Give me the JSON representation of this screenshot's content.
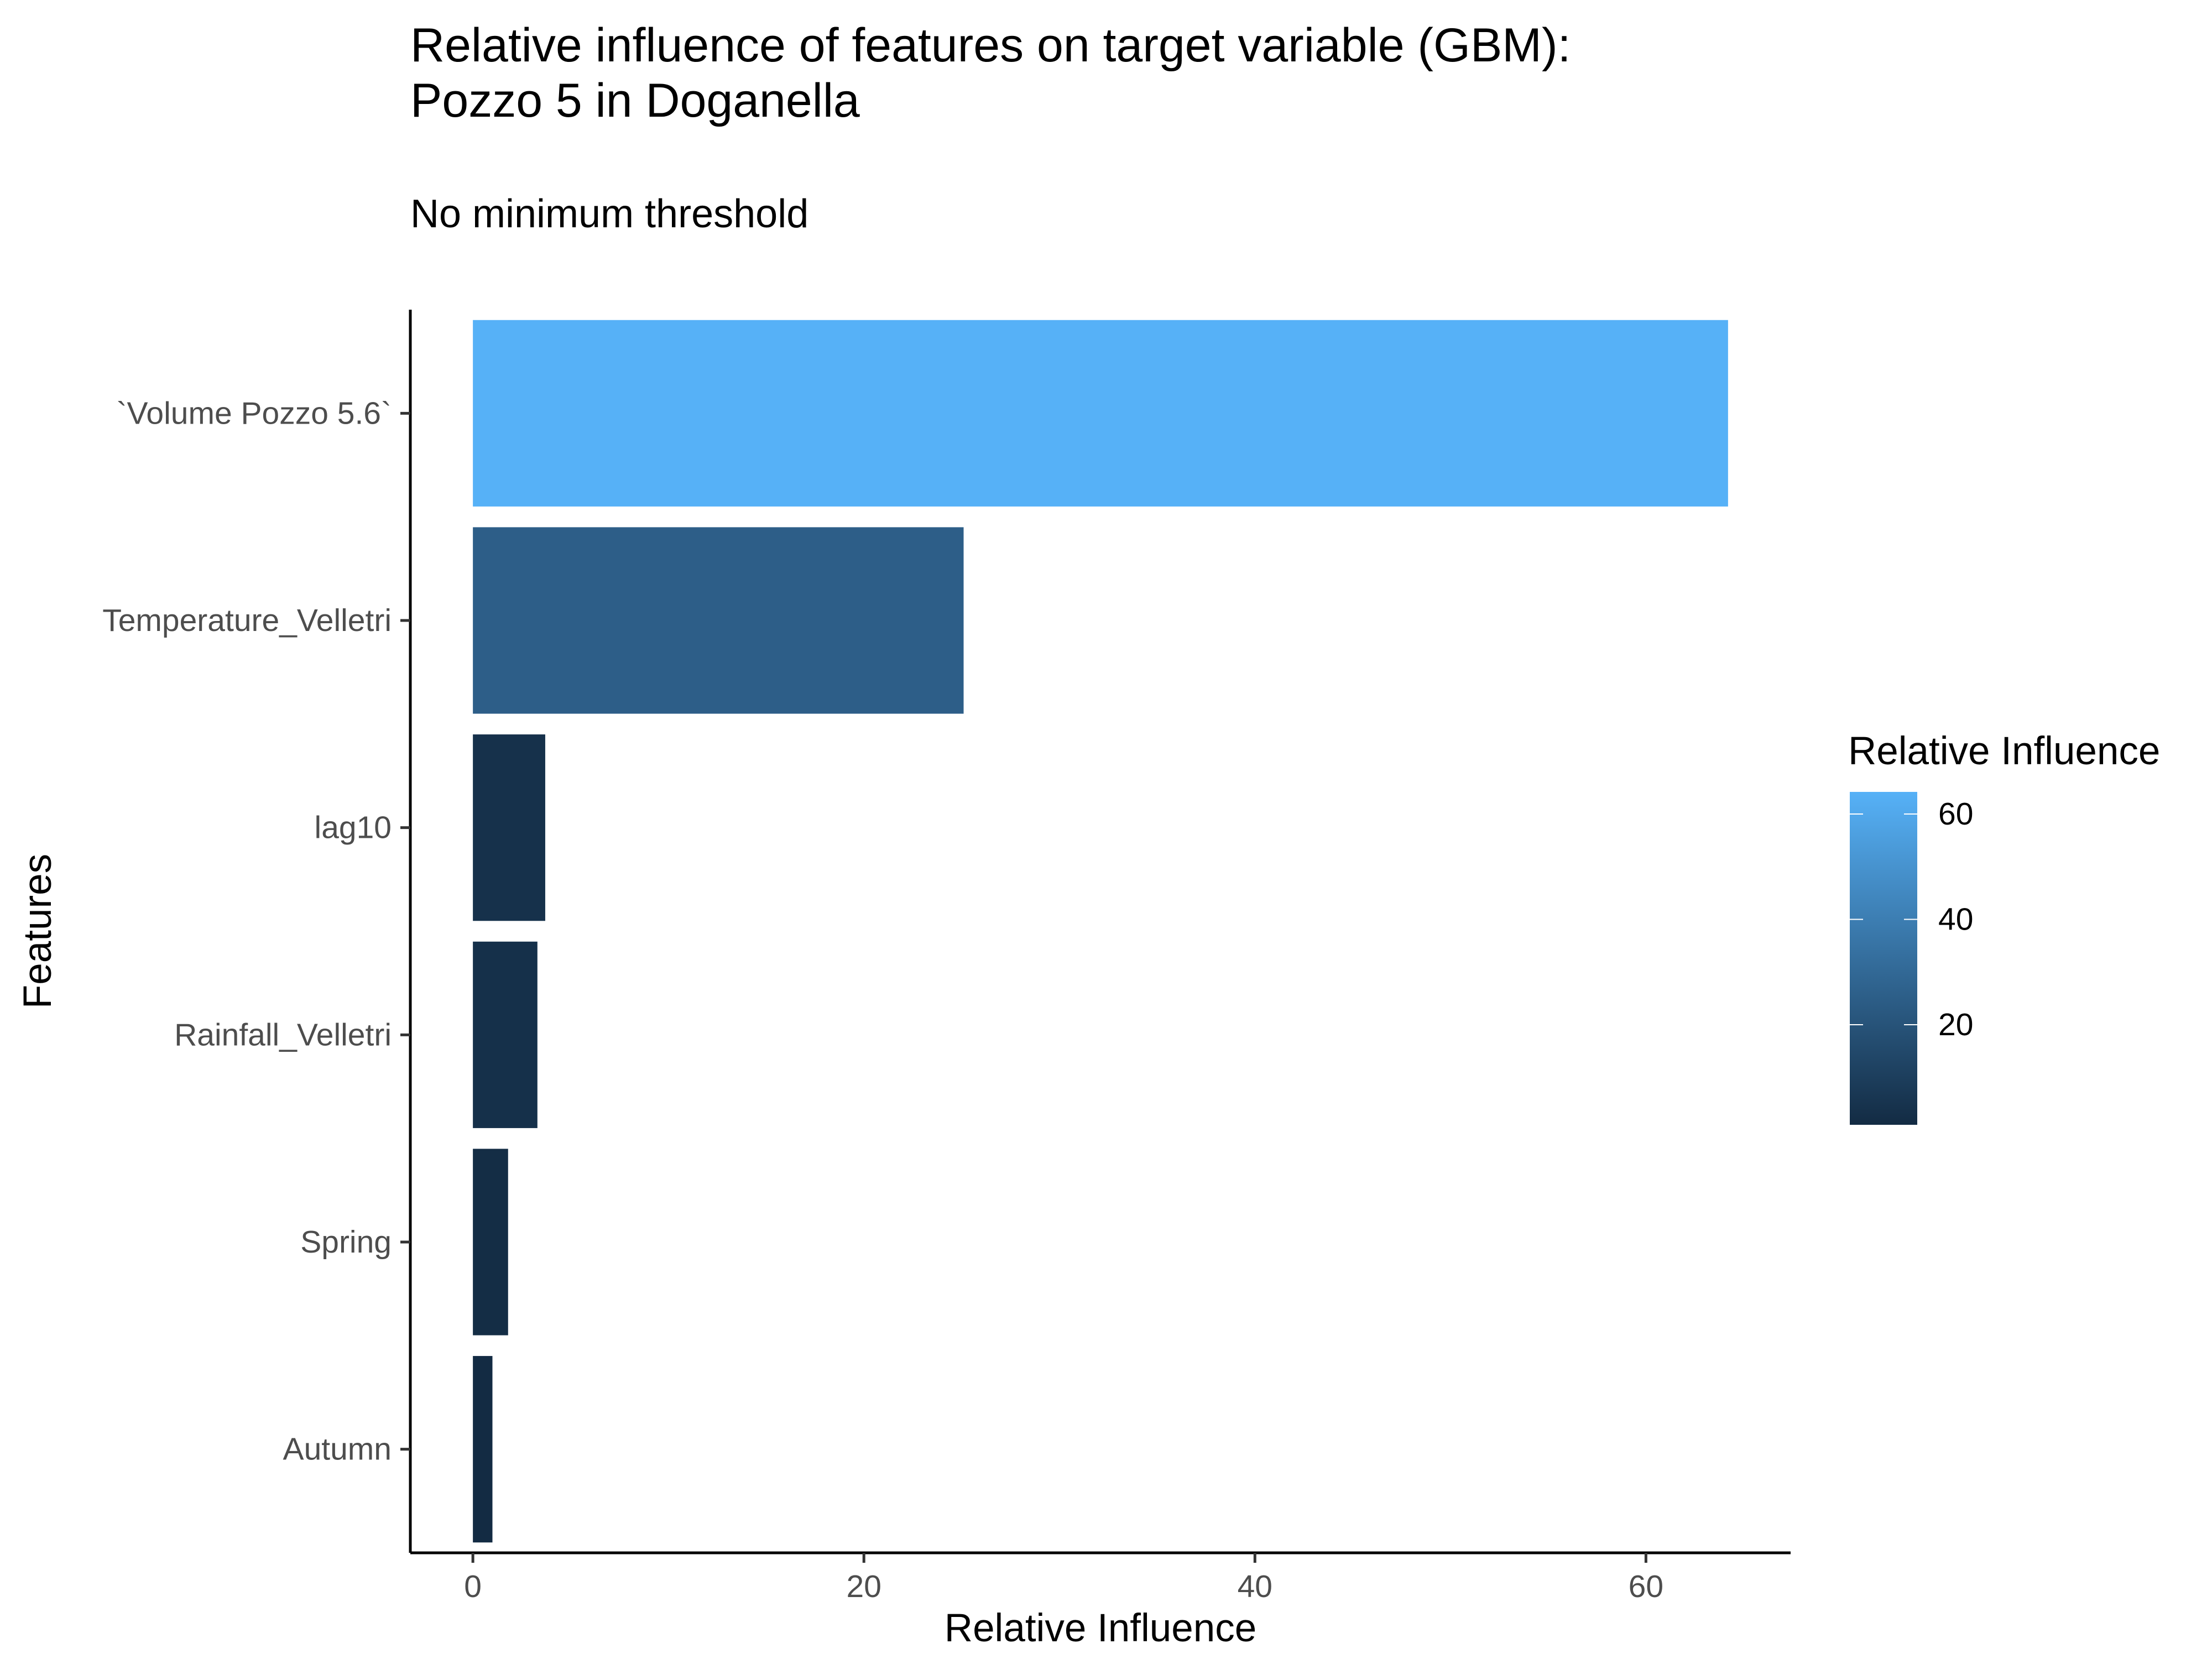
{
  "chart_data": {
    "type": "bar",
    "orientation": "horizontal",
    "title": "Relative influence of features on target variable (GBM):\nPozzo 5 in Doganella",
    "subtitle": "No minimum threshold",
    "xlabel": "Relative Influence",
    "ylabel": "Features",
    "categories": [
      "`Volume Pozzo 5.6`",
      "Temperature_Velletri",
      "lag10",
      "Rainfall_Velletri",
      "Spring",
      "Autumn"
    ],
    "values": [
      64.2,
      25.1,
      3.7,
      3.3,
      1.8,
      1.0
    ],
    "xlim": [
      -3.2,
      67.4
    ],
    "xticks": [
      0,
      20,
      40,
      60
    ],
    "grid": false,
    "legend": {
      "title": "Relative Influence",
      "position": "right",
      "ticks": [
        20,
        40,
        60
      ],
      "range": [
        1.0,
        64.2
      ],
      "color_low": "#132B43",
      "color_high": "#56B1F7"
    }
  }
}
